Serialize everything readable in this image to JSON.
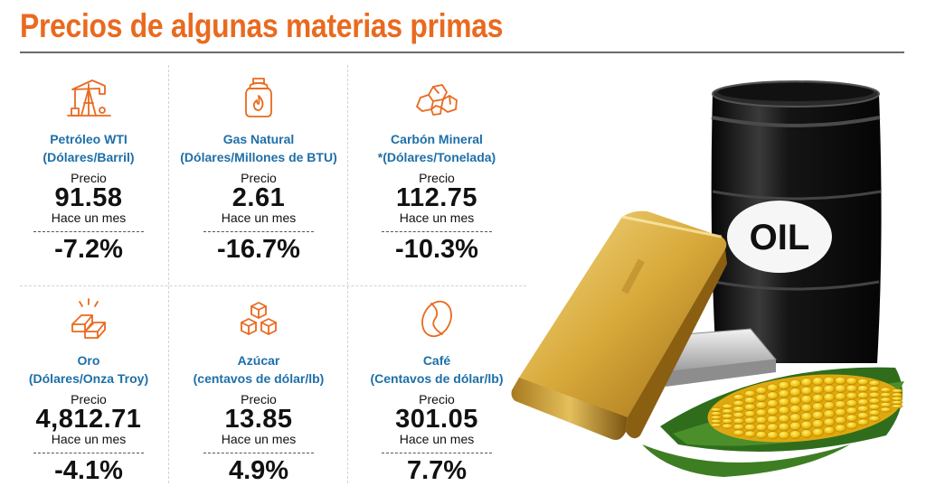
{
  "title": "Precios de algunas materias primas",
  "labels": {
    "precio": "Precio",
    "hace_un_mes": "Hace un mes"
  },
  "items": [
    {
      "name": "Petróleo WTI",
      "unit": "(Dólares/Barril)",
      "price": "91.58",
      "change": "-7.2%",
      "icon": "oil-pump-icon"
    },
    {
      "name": "Gas Natural",
      "unit": "(Dólares/Millones de BTU)",
      "price": "2.61",
      "change": "-16.7%",
      "icon": "gas-cylinder-icon"
    },
    {
      "name": "Carbón Mineral",
      "unit": "*(Dólares/Tonelada)",
      "price": "112.75",
      "change": "-10.3%",
      "icon": "coal-rocks-icon"
    },
    {
      "name": "Oro",
      "unit": "(Dólares/Onza Troy)",
      "price": "4,812.71",
      "change": "-4.1%",
      "icon": "gold-bars-icon"
    },
    {
      "name": "Azúcar",
      "unit": "(centavos de dólar/lb)",
      "price": "13.85",
      "change": "4.9%",
      "icon": "sugar-cubes-icon"
    },
    {
      "name": "Café",
      "unit": "(Centavos de dólar/lb)",
      "price": "301.05",
      "change": "7.7%",
      "icon": "coffee-bean-icon"
    }
  ],
  "illustration": {
    "barrel_text": "OIL"
  },
  "colors": {
    "title": "#e96a1f",
    "commodity_name": "#1d6fa8",
    "icon": "#e96a1f"
  }
}
